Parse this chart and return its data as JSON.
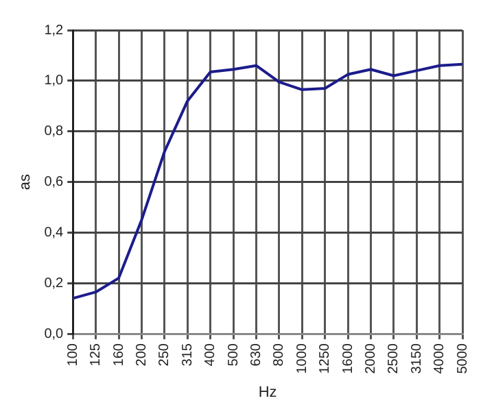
{
  "chart_data": {
    "type": "line",
    "xlabel": "Hz",
    "ylabel": "as",
    "categories": [
      "100",
      "125",
      "160",
      "200",
      "250",
      "315",
      "400",
      "500",
      "630",
      "800",
      "1000",
      "1250",
      "1600",
      "2000",
      "2500",
      "3150",
      "4000",
      "5000"
    ],
    "series": [
      {
        "color": "#1c1c8c",
        "values": [
          0.14,
          0.165,
          0.22,
          0.45,
          0.72,
          0.92,
          1.035,
          1.045,
          1.06,
          0.995,
          0.965,
          0.97,
          1.025,
          1.045,
          1.02,
          1.04,
          1.06,
          1.065
        ]
      }
    ],
    "ylim": [
      0,
      1.2
    ],
    "yticks": [
      {
        "value": 0,
        "label": "0,0"
      },
      {
        "value": 0.2,
        "label": "0,2"
      },
      {
        "value": 0.4,
        "label": "0,4"
      },
      {
        "value": 0.6,
        "label": "0,6"
      },
      {
        "value": 0.8,
        "label": "0,8"
      },
      {
        "value": 1,
        "label": "1,0"
      },
      {
        "value": 1.2,
        "label": "1,2"
      }
    ],
    "grid": true,
    "legend": false,
    "marker": "none",
    "line_style": "solid"
  }
}
